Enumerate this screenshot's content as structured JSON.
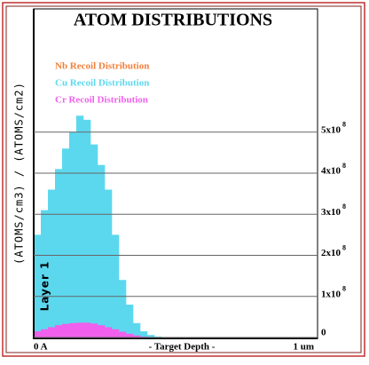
{
  "chart_data": {
    "type": "histogram",
    "title": "ATOM DISTRIBUTIONS",
    "ylabel": "(ATOMS/cm3) / (ATOMS/cm2)",
    "xlabel": "- Target Depth -",
    "annotation": "Layer 1",
    "ytick_exponent": "8",
    "bins": [
      0,
      0.025,
      0.05,
      0.075,
      0.1,
      0.125,
      0.15,
      0.175,
      0.2,
      0.225,
      0.25,
      0.275,
      0.3,
      0.325,
      0.35,
      0.375,
      0.4,
      0.425,
      0.45,
      0.475,
      0.5
    ],
    "series": [
      {
        "name": "Nb Recoil Distribution",
        "color": "#f0803c",
        "values": [
          10000000,
          14000000,
          18000000,
          21000000,
          24000000,
          26000000,
          27000000,
          27000000,
          25000000,
          22000000,
          18000000,
          14000000,
          10000000,
          6000000,
          3000000,
          1000000,
          0,
          0,
          0,
          0
        ]
      },
      {
        "name": "Cu Recoil Distribution",
        "color": "#5cd8ee",
        "values": [
          250000000,
          310000000,
          360000000,
          410000000,
          460000000,
          500000000,
          540000000,
          530000000,
          470000000,
          420000000,
          360000000,
          250000000,
          140000000,
          80000000,
          35000000,
          15000000,
          6000000,
          2000000,
          1000000,
          0
        ]
      },
      {
        "name": "Cr Recoil Distribution",
        "color": "#f060ec",
        "values": [
          15000000,
          20000000,
          25000000,
          30000000,
          33000000,
          35000000,
          36000000,
          36000000,
          34000000,
          30000000,
          25000000,
          20000000,
          14000000,
          9000000,
          5000000,
          2000000,
          1000000,
          0,
          0,
          0
        ]
      }
    ],
    "xlim": [
      0,
      1
    ],
    "xticks": [
      {
        "value": 0,
        "label": "0 A"
      },
      {
        "value": 1,
        "label": "1 um"
      }
    ],
    "ylim": [
      0,
      800000000
    ],
    "yticks": [
      0,
      {
        "value": 100000000,
        "label": "1x10"
      },
      {
        "value": 200000000,
        "label": "2x10"
      },
      {
        "value": 300000000,
        "label": "3x10"
      },
      {
        "value": 400000000,
        "label": "4x10"
      },
      {
        "value": 500000000,
        "label": "5x10"
      }
    ],
    "grid": true
  }
}
